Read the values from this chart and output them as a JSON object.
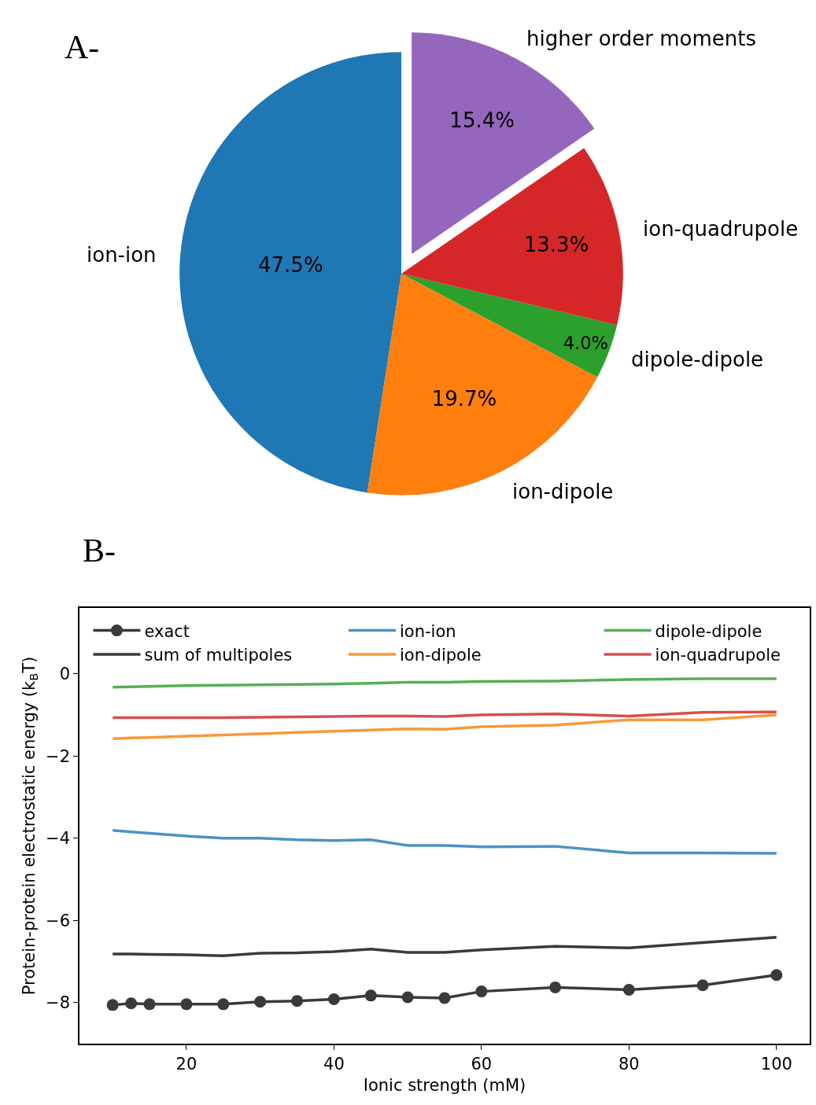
{
  "chart_data": [
    {
      "type": "pie",
      "title": "A-",
      "categories": [
        "ion-ion",
        "ion-dipole",
        "dipole-dipole",
        "ion-quadrupole",
        "higher order moments"
      ],
      "values": [
        47.5,
        19.7,
        4.0,
        13.3,
        15.4
      ],
      "colors": [
        "#1f77b4",
        "#ff7f0e",
        "#2ca02c",
        "#d62728",
        "#9467bd"
      ],
      "value_labels": [
        "47.5%",
        "19.7%",
        "4.0%",
        "13.3%",
        "15.4%"
      ],
      "legend": false
    },
    {
      "type": "line",
      "title": "B-",
      "xlabel": "Ionic strength (mM)",
      "ylabel": "Protein-protein electrostatic energy (k$_{B}$T)",
      "x": [
        10,
        12.5,
        15,
        20,
        25,
        30,
        35,
        40,
        45,
        50,
        55,
        60,
        70,
        80,
        90,
        100
      ],
      "series": [
        {
          "name": "exact",
          "color": "#3a3a3a",
          "marker": "circle",
          "values": [
            -8.06,
            -8.02,
            -8.04,
            -8.04,
            -8.04,
            -7.98,
            -7.96,
            -7.92,
            -7.83,
            -7.87,
            -7.89,
            -7.73,
            -7.63,
            -7.69,
            -7.58,
            -7.33
          ]
        },
        {
          "name": "sum of multipoles",
          "color": "#3a3a3a",
          "marker": "none",
          "values": [
            -6.82,
            -6.82,
            -6.83,
            -6.84,
            -6.86,
            -6.8,
            -6.79,
            -6.76,
            -6.7,
            -6.78,
            -6.78,
            -6.72,
            -6.63,
            -6.67,
            -6.54,
            -6.41
          ]
        },
        {
          "name": "ion-ion",
          "color": "#4c92c3",
          "marker": "none",
          "values": [
            -3.81,
            -3.85,
            -3.88,
            -3.95,
            -4.0,
            -4.0,
            -4.04,
            -4.06,
            -4.04,
            -4.18,
            -4.18,
            -4.21,
            -4.2,
            -4.36,
            -4.36,
            -4.37
          ]
        },
        {
          "name": "ion-dipole",
          "color": "#f7993a",
          "marker": "none",
          "values": [
            -1.58,
            -1.56,
            -1.55,
            -1.52,
            -1.49,
            -1.46,
            -1.43,
            -1.4,
            -1.37,
            -1.34,
            -1.35,
            -1.29,
            -1.25,
            -1.12,
            -1.12,
            -1.0
          ]
        },
        {
          "name": "dipole-dipole",
          "color": "#55b054",
          "marker": "none",
          "values": [
            -0.33,
            -0.32,
            -0.31,
            -0.29,
            -0.28,
            -0.27,
            -0.26,
            -0.25,
            -0.23,
            -0.21,
            -0.21,
            -0.19,
            -0.18,
            -0.14,
            -0.12,
            -0.12
          ]
        },
        {
          "name": "ion-quadrupole",
          "color": "#d5504f",
          "marker": "none",
          "values": [
            -1.07,
            -1.07,
            -1.07,
            -1.07,
            -1.07,
            -1.06,
            -1.05,
            -1.04,
            -1.03,
            -1.03,
            -1.04,
            -1.0,
            -0.98,
            -1.03,
            -0.94,
            -0.93
          ]
        }
      ],
      "xlim": [
        5.5,
        104.5
      ],
      "ylim": [
        -9.0,
        1.6
      ],
      "xticks": [
        20,
        40,
        60,
        80,
        100
      ],
      "yticks": [
        0,
        {
          "value": -2,
          "label": "−2"
        },
        {
          "value": -4,
          "label": "−4"
        },
        {
          "value": -6,
          "label": "−6"
        },
        {
          "value": -8,
          "label": "−8"
        }
      ],
      "legend": "top left",
      "line_style": "solid"
    }
  ]
}
